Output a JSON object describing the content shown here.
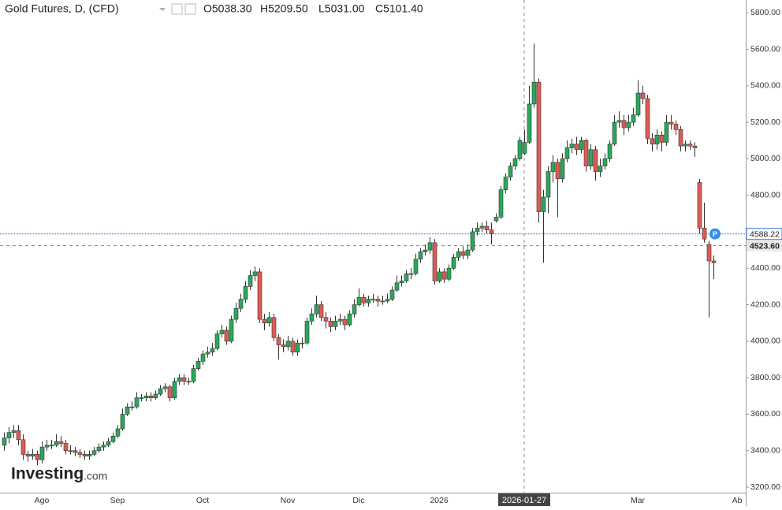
{
  "chart_data": {
    "type": "candlestick",
    "title": "Gold Futures, D, (CFD)",
    "legend_ohlc": [
      "O5038.30",
      "H5209.50",
      "L5031.00",
      "C5101.40"
    ],
    "watermark": "Investing",
    "watermark_suffix": ".com",
    "price_marker": "P",
    "up_color": "#2aa85a",
    "down_color": "#e05a55",
    "ylim": [
      3170,
      5870
    ],
    "yticks": [
      {
        "value": 3200,
        "label": "3200.00"
      },
      {
        "value": 3400,
        "label": "3400.00"
      },
      {
        "value": 3600,
        "label": "3600.00"
      },
      {
        "value": 3800,
        "label": "3800.00"
      },
      {
        "value": 4000,
        "label": "4000.00"
      },
      {
        "value": 4200,
        "label": "4200.00"
      },
      {
        "value": 4400,
        "label": "4400.00"
      },
      {
        "value": 4600,
        "label": "4600.00"
      },
      {
        "value": 4800,
        "label": "4800.00"
      },
      {
        "value": 5000,
        "label": "5000.00"
      },
      {
        "value": 5200,
        "label": "5200.00"
      },
      {
        "value": 5400,
        "label": "5400.00"
      },
      {
        "value": 5600,
        "label": "5600.00"
      },
      {
        "value": 5800,
        "label": "5800.00"
      }
    ],
    "last_price": 4588.22,
    "crosshair": {
      "x": "2026-01-27",
      "y": {
        "value": 4523.6,
        "label": "4523.60"
      }
    },
    "categories": [
      null,
      null,
      null,
      null,
      null,
      null,
      null,
      null,
      "Ago",
      null,
      null,
      null,
      null,
      null,
      null,
      null,
      null,
      null,
      null,
      null,
      null,
      null,
      null,
      null,
      "Sep",
      null,
      null,
      null,
      null,
      null,
      null,
      null,
      null,
      null,
      null,
      null,
      null,
      null,
      null,
      null,
      null,
      null,
      "Oct",
      null,
      null,
      null,
      null,
      null,
      null,
      null,
      null,
      null,
      null,
      null,
      null,
      null,
      null,
      null,
      null,
      null,
      "Nov",
      null,
      null,
      null,
      null,
      null,
      null,
      null,
      null,
      null,
      null,
      null,
      null,
      null,
      null,
      "Dic",
      null,
      null,
      null,
      null,
      null,
      null,
      null,
      null,
      null,
      null,
      null,
      null,
      null,
      null,
      null,
      null,
      "2026",
      null,
      null,
      null,
      null,
      null,
      null,
      null,
      null,
      null,
      null,
      null,
      null,
      null,
      null,
      null,
      null,
      null,
      "2026-01-27",
      null,
      null,
      null,
      null,
      null,
      null,
      null,
      null,
      null,
      null,
      null,
      null,
      null,
      null,
      null,
      null,
      null,
      null,
      null,
      null,
      null,
      null,
      null,
      "Mar",
      null,
      null,
      null,
      null,
      null,
      null,
      null,
      null,
      null,
      null,
      null,
      null,
      null,
      null,
      null,
      null,
      null,
      null,
      null,
      null,
      "Ab"
    ],
    "candles": [
      [
        3430,
        3500,
        3400,
        3470
      ],
      [
        3470,
        3530,
        3440,
        3500
      ],
      [
        3500,
        3540,
        3470,
        3510
      ],
      [
        3510,
        3540,
        3430,
        3460
      ],
      [
        3460,
        3490,
        3350,
        3380
      ],
      [
        3380,
        3400,
        3340,
        3370
      ],
      [
        3370,
        3410,
        3350,
        3380
      ],
      [
        3380,
        3400,
        3320,
        3350
      ],
      [
        3350,
        3450,
        3330,
        3420
      ],
      [
        3420,
        3460,
        3400,
        3430
      ],
      [
        3430,
        3460,
        3410,
        3430
      ],
      [
        3430,
        3490,
        3420,
        3450
      ],
      [
        3450,
        3480,
        3420,
        3440
      ],
      [
        3440,
        3460,
        3380,
        3400
      ],
      [
        3400,
        3430,
        3380,
        3400
      ],
      [
        3400,
        3420,
        3370,
        3390
      ],
      [
        3390,
        3410,
        3360,
        3380
      ],
      [
        3380,
        3400,
        3350,
        3370
      ],
      [
        3370,
        3400,
        3350,
        3380
      ],
      [
        3380,
        3420,
        3370,
        3400
      ],
      [
        3400,
        3440,
        3390,
        3420
      ],
      [
        3420,
        3450,
        3400,
        3430
      ],
      [
        3430,
        3470,
        3420,
        3450
      ],
      [
        3450,
        3500,
        3440,
        3480
      ],
      [
        3480,
        3540,
        3470,
        3520
      ],
      [
        3520,
        3630,
        3510,
        3600
      ],
      [
        3600,
        3660,
        3590,
        3640
      ],
      [
        3640,
        3670,
        3620,
        3640
      ],
      [
        3640,
        3720,
        3630,
        3690
      ],
      [
        3690,
        3710,
        3670,
        3690
      ],
      [
        3690,
        3720,
        3670,
        3700
      ],
      [
        3700,
        3720,
        3670,
        3690
      ],
      [
        3690,
        3730,
        3680,
        3710
      ],
      [
        3710,
        3760,
        3700,
        3740
      ],
      [
        3740,
        3770,
        3720,
        3750
      ],
      [
        3750,
        3760,
        3670,
        3690
      ],
      [
        3690,
        3800,
        3680,
        3780
      ],
      [
        3780,
        3820,
        3760,
        3800
      ],
      [
        3800,
        3820,
        3760,
        3780
      ],
      [
        3780,
        3800,
        3760,
        3780
      ],
      [
        3780,
        3870,
        3770,
        3850
      ],
      [
        3850,
        3910,
        3840,
        3890
      ],
      [
        3890,
        3950,
        3870,
        3930
      ],
      [
        3930,
        3970,
        3910,
        3940
      ],
      [
        3940,
        3990,
        3920,
        3960
      ],
      [
        3960,
        4060,
        3950,
        4040
      ],
      [
        4040,
        4090,
        4020,
        4060
      ],
      [
        4060,
        4080,
        3980,
        4000
      ],
      [
        4000,
        4140,
        3990,
        4120
      ],
      [
        4120,
        4210,
        4100,
        4180
      ],
      [
        4180,
        4260,
        4160,
        4230
      ],
      [
        4230,
        4330,
        4210,
        4300
      ],
      [
        4300,
        4390,
        4280,
        4360
      ],
      [
        4360,
        4410,
        4330,
        4380
      ],
      [
        4380,
        4400,
        4100,
        4120
      ],
      [
        4120,
        4150,
        4060,
        4100
      ],
      [
        4100,
        4160,
        4080,
        4130
      ],
      [
        4130,
        4150,
        4000,
        4020
      ],
      [
        4020,
        4040,
        3900,
        3980
      ],
      [
        3980,
        4010,
        3940,
        3970
      ],
      [
        3970,
        4030,
        3950,
        4000
      ],
      [
        4000,
        4020,
        3920,
        3940
      ],
      [
        3940,
        4010,
        3920,
        3990
      ],
      [
        3990,
        4020,
        3960,
        3990
      ],
      [
        3990,
        4130,
        3980,
        4110
      ],
      [
        4110,
        4180,
        4090,
        4150
      ],
      [
        4150,
        4250,
        4130,
        4200
      ],
      [
        4200,
        4220,
        4110,
        4130
      ],
      [
        4130,
        4160,
        4070,
        4110
      ],
      [
        4110,
        4130,
        4050,
        4080
      ],
      [
        4080,
        4140,
        4060,
        4110
      ],
      [
        4110,
        4150,
        4090,
        4120
      ],
      [
        4120,
        4140,
        4060,
        4090
      ],
      [
        4090,
        4170,
        4080,
        4150
      ],
      [
        4150,
        4230,
        4130,
        4200
      ],
      [
        4200,
        4290,
        4190,
        4240
      ],
      [
        4240,
        4260,
        4190,
        4210
      ],
      [
        4210,
        4250,
        4190,
        4230
      ],
      [
        4230,
        4260,
        4210,
        4230
      ],
      [
        4230,
        4250,
        4190,
        4220
      ],
      [
        4220,
        4250,
        4200,
        4220
      ],
      [
        4220,
        4260,
        4210,
        4230
      ],
      [
        4230,
        4300,
        4220,
        4280
      ],
      [
        4280,
        4360,
        4270,
        4320
      ],
      [
        4320,
        4360,
        4300,
        4330
      ],
      [
        4330,
        4390,
        4320,
        4370
      ],
      [
        4370,
        4400,
        4340,
        4370
      ],
      [
        4370,
        4480,
        4360,
        4450
      ],
      [
        4450,
        4510,
        4430,
        4490
      ],
      [
        4490,
        4530,
        4470,
        4500
      ],
      [
        4500,
        4570,
        4480,
        4540
      ],
      [
        4540,
        4560,
        4310,
        4330
      ],
      [
        4330,
        4400,
        4320,
        4380
      ],
      [
        4380,
        4400,
        4320,
        4340
      ],
      [
        4340,
        4420,
        4330,
        4400
      ],
      [
        4400,
        4480,
        4390,
        4460
      ],
      [
        4460,
        4510,
        4440,
        4490
      ],
      [
        4490,
        4520,
        4450,
        4470
      ],
      [
        4470,
        4530,
        4450,
        4500
      ],
      [
        4500,
        4620,
        4490,
        4600
      ],
      [
        4600,
        4650,
        4580,
        4620
      ],
      [
        4620,
        4650,
        4600,
        4630
      ],
      [
        4630,
        4660,
        4590,
        4610
      ],
      [
        4610,
        4650,
        4530,
        4590
      ],
      [
        4660,
        4700,
        4650,
        4680
      ],
      [
        4680,
        4850,
        4670,
        4830
      ],
      [
        4830,
        4920,
        4810,
        4900
      ],
      [
        4900,
        4980,
        4880,
        4960
      ],
      [
        4960,
        5020,
        4940,
        5000
      ],
      [
        5000,
        5120,
        4990,
        5100
      ],
      [
        5030,
        5160,
        5020,
        5090
      ],
      [
        5090,
        5400,
        5080,
        5300
      ],
      [
        5300,
        5630,
        5280,
        5420
      ],
      [
        5420,
        5440,
        4650,
        4710
      ],
      [
        4710,
        4830,
        4430,
        4790
      ],
      [
        4790,
        4960,
        4700,
        4930
      ],
      [
        4930,
        5020,
        4870,
        4980
      ],
      [
        4980,
        5000,
        4680,
        4890
      ],
      [
        4890,
        5030,
        4870,
        5000
      ],
      [
        5000,
        5100,
        4980,
        5060
      ],
      [
        5060,
        5110,
        5030,
        5080
      ],
      [
        5080,
        5120,
        5020,
        5050
      ],
      [
        5050,
        5120,
        5030,
        5100
      ],
      [
        5100,
        5110,
        4930,
        4960
      ],
      [
        4960,
        5080,
        4940,
        5050
      ],
      [
        5050,
        5070,
        4880,
        4930
      ],
      [
        4930,
        5000,
        4900,
        4960
      ],
      [
        4960,
        5030,
        4940,
        5000
      ],
      [
        5000,
        5100,
        4980,
        5080
      ],
      [
        5080,
        5240,
        5070,
        5200
      ],
      [
        5200,
        5260,
        5170,
        5210
      ],
      [
        5210,
        5240,
        5130,
        5170
      ],
      [
        5170,
        5240,
        5150,
        5200
      ],
      [
        5200,
        5280,
        5180,
        5240
      ],
      [
        5240,
        5430,
        5230,
        5360
      ],
      [
        5360,
        5400,
        5300,
        5330
      ],
      [
        5330,
        5350,
        5080,
        5110
      ],
      [
        5110,
        5140,
        5040,
        5080
      ],
      [
        5080,
        5160,
        5050,
        5130
      ],
      [
        5130,
        5150,
        5040,
        5090
      ],
      [
        5090,
        5240,
        5070,
        5200
      ],
      [
        5200,
        5240,
        5160,
        5190
      ],
      [
        5190,
        5210,
        5130,
        5160
      ],
      [
        5160,
        5180,
        5040,
        5070
      ],
      [
        5070,
        5100,
        5040,
        5080
      ],
      [
        5080,
        5100,
        5050,
        5070
      ],
      [
        5070,
        5090,
        5010,
        5060
      ],
      [
        4870,
        4890,
        4590,
        4620
      ],
      [
        4620,
        4760,
        4540,
        4560
      ],
      [
        4530,
        4550,
        4130,
        4440
      ],
      [
        4440,
        4470,
        4340,
        4430
      ],
      null,
      null,
      null,
      null,
      null
    ]
  }
}
